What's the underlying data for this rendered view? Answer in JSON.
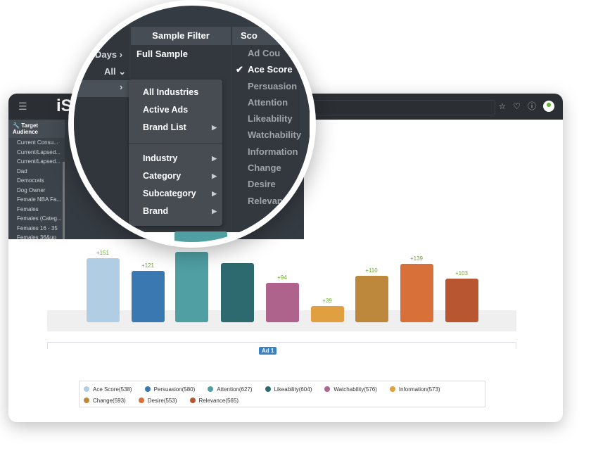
{
  "header": {
    "menu_icon": "hamburger-icon",
    "logo": "iS",
    "icons": [
      "star-icon",
      "bell-icon",
      "info-icon",
      "user-avatar-icon"
    ]
  },
  "sidebar": {
    "title": "Target Audience",
    "title_icon": "wrench-icon",
    "items": [
      "Current Consu...",
      "Current/Lapsed...",
      "Current/Lapsed...",
      "Dad",
      "Democrats",
      "Dog Owner",
      "Female NBA Fa...",
      "Females",
      "Females (Categ...",
      "Females 16 - 35",
      "Females 36&up"
    ]
  },
  "magnifier": {
    "left_column": {
      "rows": [
        "Days",
        "All"
      ]
    },
    "sample_filter": {
      "header": "Sample Filter",
      "value": "Full Sample"
    },
    "score": {
      "header": "Sco",
      "items": [
        "Ad Cou",
        "Ace Score",
        "Persuasion",
        "Attention",
        "Likeability",
        "Watchability",
        "Information",
        "Change",
        "Desire",
        "Relevance"
      ],
      "selected": "Ace Score"
    },
    "dropdown": {
      "items": [
        {
          "label": "All Industries",
          "submenu": false
        },
        {
          "label": "Active Ads",
          "submenu": false
        },
        {
          "label": "Brand List",
          "submenu": true
        },
        {
          "label": "Industry",
          "submenu": true
        },
        {
          "label": "Category",
          "submenu": true
        },
        {
          "label": "Subcategory",
          "submenu": true
        },
        {
          "label": "Brand",
          "submenu": true
        }
      ]
    }
  },
  "chart_data": {
    "type": "bar",
    "categories": [
      "Ace Score",
      "Persuasion",
      "Attention",
      "Likeability",
      "Watchability",
      "Information",
      "Change",
      "Desire",
      "Relevance"
    ],
    "values": [
      151,
      121,
      167,
      140,
      94,
      39,
      110,
      139,
      103
    ],
    "data_labels": [
      "+151",
      "+121",
      null,
      null,
      "+94",
      "+39",
      "+110",
      "+139",
      "+103"
    ],
    "colors": [
      "#b0cde3",
      "#3a78b1",
      "#4f9fa3",
      "#2d6a70",
      "#ad638b",
      "#e0a042",
      "#bd883c",
      "#d8703a",
      "#b95632"
    ],
    "xlabel": "Ad 1",
    "legend": [
      "Ace Score(538)",
      "Persuasion(580)",
      "Attention(627)",
      "Likeability(604)",
      "Watchability(576)",
      "Information(573)",
      "Change(593)",
      "Desire(553)",
      "Relevance(565)"
    ],
    "legend_placement": "bottom",
    "label_color": "#6aaa2a"
  }
}
